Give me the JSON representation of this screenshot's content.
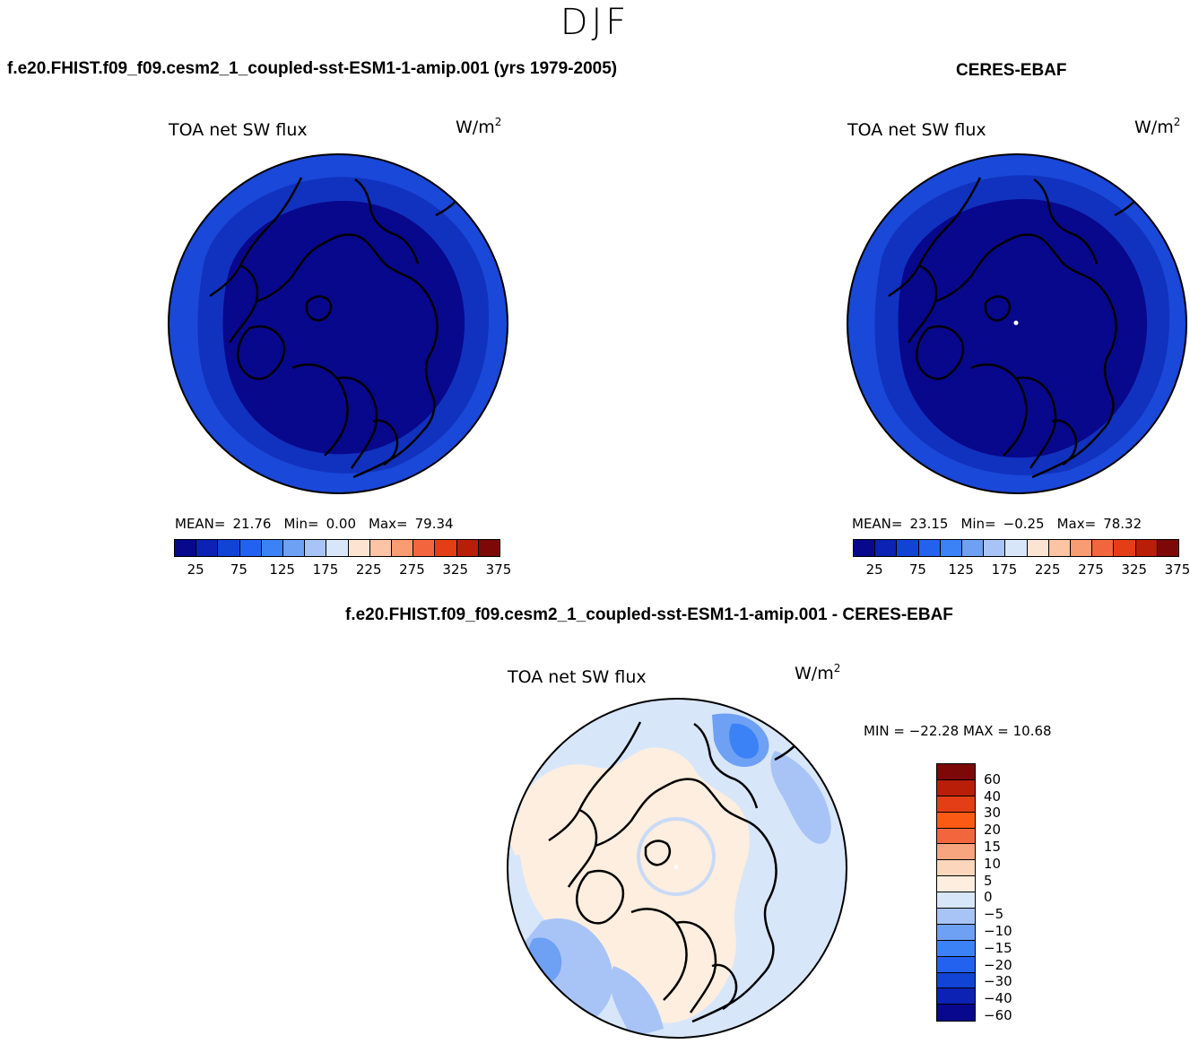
{
  "season": "DJF",
  "colors": {
    "abs_levels": [
      "#08088c",
      "#0b22b4",
      "#1144d4",
      "#2262ee",
      "#3b82f6",
      "#6ea0f4",
      "#a8c4f6",
      "#d8e6fa",
      "#fde4d2",
      "#fcc4a4",
      "#f89c74",
      "#f2663e",
      "#e33e16",
      "#b81e08",
      "#7c0808"
    ],
    "diff_levels": [
      "#08088c",
      "#0b22b4",
      "#1144d4",
      "#2262ee",
      "#3b82f6",
      "#6ea0f4",
      "#a8c4f6",
      "#d8e6fa",
      "#fdeedf",
      "#fbd6bc",
      "#f6a57e",
      "#f2663e",
      "#fb5a14",
      "#e33e16",
      "#b81e08",
      "#7c0808"
    ]
  },
  "panels": {
    "model": {
      "title": "f.e20.FHIST.f09_f09.cesm2_1_coupled-sst-ESM1-1-amip.001 (yrs 1979-2005)",
      "variable": "TOA net SW flux",
      "units": "W/m",
      "units_sup": "2",
      "mean_label": "MEAN=",
      "mean": "21.76",
      "min_label": "Min=",
      "min": "0.00",
      "max_label": "Max=",
      "max": "79.34",
      "ticks": [
        "25",
        "75",
        "125",
        "175",
        "225",
        "275",
        "325",
        "375"
      ]
    },
    "obs": {
      "title": "CERES-EBAF",
      "variable": "TOA net SW flux",
      "units": "W/m",
      "units_sup": "2",
      "mean_label": "MEAN=",
      "mean": "23.15",
      "min_label": "Min=",
      "min": "−0.25",
      "max_label": "Max=",
      "max": "78.32",
      "ticks": [
        "25",
        "75",
        "125",
        "175",
        "225",
        "275",
        "325",
        "375"
      ]
    },
    "diff": {
      "title": "f.e20.FHIST.f09_f09.cesm2_1_coupled-sst-ESM1-1-amip.001 - CERES-EBAF",
      "variable": "TOA net SW flux",
      "units": "W/m",
      "units_sup": "2",
      "min_label": "MIN =",
      "min": "−22.28",
      "max_label": "MAX =",
      "max": "10.68",
      "ticks": [
        "60",
        "40",
        "30",
        "20",
        "15",
        "10",
        "5",
        "0",
        "−5",
        "−10",
        "−15",
        "−20",
        "−30",
        "−40",
        "−60"
      ]
    }
  }
}
